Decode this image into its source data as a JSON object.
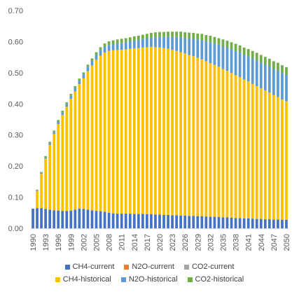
{
  "chart_data": {
    "type": "bar",
    "stacked": true,
    "title": "",
    "xlabel": "",
    "ylabel": "",
    "ylim": [
      0,
      0.7
    ],
    "y_ticks": [
      "0.00",
      "0.10",
      "0.20",
      "0.30",
      "0.40",
      "0.50",
      "0.60",
      "0.70"
    ],
    "grid": false,
    "legend_placement": "bottom",
    "x_tick_labels": [
      "1990",
      "1993",
      "1996",
      "1999",
      "2002",
      "2005",
      "2008",
      "2011",
      "2014",
      "2017",
      "2020",
      "2023",
      "2026",
      "2029",
      "2032",
      "2035",
      "2038",
      "2041",
      "2044",
      "2047",
      "2050"
    ],
    "categories": [
      1990,
      1991,
      1992,
      1993,
      1994,
      1995,
      1996,
      1997,
      1998,
      1999,
      2000,
      2001,
      2002,
      2003,
      2004,
      2005,
      2006,
      2007,
      2008,
      2009,
      2010,
      2011,
      2012,
      2013,
      2014,
      2015,
      2016,
      2017,
      2018,
      2019,
      2020,
      2021,
      2022,
      2023,
      2024,
      2025,
      2026,
      2027,
      2028,
      2029,
      2030,
      2031,
      2032,
      2033,
      2034,
      2035,
      2036,
      2037,
      2038,
      2039,
      2040,
      2041,
      2042,
      2043,
      2044,
      2045,
      2046,
      2047,
      2048,
      2049,
      2050
    ],
    "series": [
      {
        "name": "CH4-current",
        "color": "#4472C4",
        "legend_row": 0,
        "values": [
          0.063,
          0.065,
          0.065,
          0.062,
          0.06,
          0.058,
          0.057,
          0.056,
          0.056,
          0.057,
          0.06,
          0.063,
          0.062,
          0.06,
          0.058,
          0.056,
          0.055,
          0.053,
          0.05,
          0.048,
          0.047,
          0.047,
          0.047,
          0.047,
          0.046,
          0.046,
          0.046,
          0.045,
          0.045,
          0.044,
          0.044,
          0.043,
          0.043,
          0.042,
          0.042,
          0.041,
          0.041,
          0.04,
          0.04,
          0.039,
          0.039,
          0.038,
          0.037,
          0.037,
          0.036,
          0.035,
          0.035,
          0.034,
          0.033,
          0.033,
          0.032,
          0.032,
          0.031,
          0.03,
          0.03,
          0.029,
          0.029,
          0.028,
          0.028,
          0.027,
          0.027
        ]
      },
      {
        "name": "N2O-current",
        "color": "#ED7D31",
        "legend_row": 0,
        "values": [
          0,
          0,
          0,
          0,
          0,
          0,
          0,
          0,
          0,
          0,
          0,
          0,
          0,
          0,
          0,
          0,
          0,
          0,
          0,
          0,
          0,
          0,
          0,
          0,
          0,
          0,
          0,
          0,
          0,
          0,
          0,
          0,
          0,
          0,
          0,
          0,
          0,
          0,
          0,
          0,
          0,
          0,
          0,
          0,
          0,
          0,
          0,
          0,
          0,
          0,
          0,
          0,
          0,
          0,
          0,
          0,
          0,
          0,
          0,
          0,
          0
        ]
      },
      {
        "name": "CO2-current",
        "color": "#A5A5A5",
        "legend_row": 0,
        "values": [
          0,
          0,
          0,
          0,
          0,
          0,
          0,
          0,
          0,
          0,
          0,
          0,
          0,
          0,
          0,
          0,
          0,
          0,
          0,
          0,
          0,
          0,
          0,
          0,
          0,
          0,
          0,
          0,
          0,
          0,
          0,
          0,
          0,
          0,
          0,
          0,
          0,
          0,
          0,
          0,
          0,
          0,
          0,
          0,
          0,
          0,
          0,
          0,
          0,
          0,
          0,
          0,
          0,
          0,
          0,
          0,
          0,
          0,
          0,
          0,
          0
        ]
      },
      {
        "name": "CH4-historical",
        "color": "#FFC000",
        "legend_row": 1,
        "values": [
          0.0,
          0.055,
          0.11,
          0.162,
          0.208,
          0.245,
          0.278,
          0.308,
          0.334,
          0.359,
          0.38,
          0.4,
          0.42,
          0.445,
          0.465,
          0.485,
          0.5,
          0.512,
          0.52,
          0.524,
          0.526,
          0.527,
          0.528,
          0.53,
          0.532,
          0.533,
          0.535,
          0.537,
          0.538,
          0.538,
          0.537,
          0.536,
          0.534,
          0.531,
          0.528,
          0.525,
          0.521,
          0.517,
          0.513,
          0.509,
          0.504,
          0.499,
          0.494,
          0.488,
          0.483,
          0.477,
          0.471,
          0.465,
          0.459,
          0.453,
          0.446,
          0.44,
          0.433,
          0.427,
          0.42,
          0.414,
          0.407,
          0.4,
          0.394,
          0.387,
          0.381
        ]
      },
      {
        "name": "N2O-historical",
        "color": "#5B9BD5",
        "legend_row": 1,
        "values": [
          0.0,
          0.002,
          0.003,
          0.004,
          0.005,
          0.006,
          0.007,
          0.008,
          0.009,
          0.01,
          0.011,
          0.012,
          0.013,
          0.014,
          0.015,
          0.016,
          0.017,
          0.018,
          0.019,
          0.02,
          0.021,
          0.022,
          0.023,
          0.024,
          0.025,
          0.026,
          0.027,
          0.028,
          0.03,
          0.032,
          0.034,
          0.036,
          0.039,
          0.042,
          0.045,
          0.048,
          0.05,
          0.053,
          0.056,
          0.059,
          0.062,
          0.064,
          0.067,
          0.069,
          0.071,
          0.073,
          0.075,
          0.077,
          0.078,
          0.079,
          0.08,
          0.081,
          0.082,
          0.083,
          0.083,
          0.084,
          0.084,
          0.084,
          0.085,
          0.085,
          0.085
        ]
      },
      {
        "name": "CO2-historical",
        "color": "#70AD47",
        "legend_row": 1,
        "values": [
          0.0,
          0.002,
          0.003,
          0.004,
          0.005,
          0.005,
          0.006,
          0.006,
          0.006,
          0.006,
          0.006,
          0.006,
          0.006,
          0.007,
          0.008,
          0.009,
          0.01,
          0.011,
          0.012,
          0.012,
          0.013,
          0.013,
          0.013,
          0.013,
          0.014,
          0.014,
          0.014,
          0.015,
          0.015,
          0.016,
          0.016,
          0.016,
          0.016,
          0.017,
          0.017,
          0.018,
          0.018,
          0.019,
          0.019,
          0.019,
          0.02,
          0.02,
          0.021,
          0.021,
          0.021,
          0.022,
          0.022,
          0.022,
          0.023,
          0.023,
          0.023,
          0.023,
          0.024,
          0.024,
          0.024,
          0.024,
          0.025,
          0.025,
          0.025,
          0.025,
          0.025
        ]
      }
    ]
  }
}
